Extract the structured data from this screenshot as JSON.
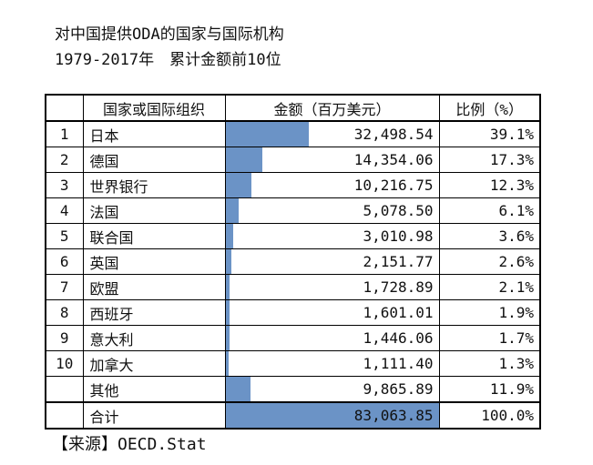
{
  "page": {
    "title_line1": "对中国提供ODA的国家与国际机构",
    "title_line2": "1979-2017年　累计金额前10位",
    "source": "【来源】OECD.Stat"
  },
  "colors": {
    "bar": "#6B93C6"
  },
  "table": {
    "headers": {
      "rank": "",
      "name": "国家或国际组织",
      "amount": "金额（百万美元）",
      "ratio": "比例（%）"
    },
    "total_value": 83063.85,
    "rows": [
      {
        "rank": "1",
        "name": "日本",
        "amount": "32,498.54",
        "ratio": "39.1%",
        "value": 32498.54
      },
      {
        "rank": "2",
        "name": "德国",
        "amount": "14,354.06",
        "ratio": "17.3%",
        "value": 14354.06
      },
      {
        "rank": "3",
        "name": "世界银行",
        "amount": "10,216.75",
        "ratio": "12.3%",
        "value": 10216.75
      },
      {
        "rank": "4",
        "name": "法国",
        "amount": "5,078.50",
        "ratio": "6.1%",
        "value": 5078.5
      },
      {
        "rank": "5",
        "name": "联合国",
        "amount": "3,010.98",
        "ratio": "3.6%",
        "value": 3010.98
      },
      {
        "rank": "6",
        "name": "英国",
        "amount": "2,151.77",
        "ratio": "2.6%",
        "value": 2151.77
      },
      {
        "rank": "7",
        "name": "欧盟",
        "amount": "1,728.89",
        "ratio": "2.1%",
        "value": 1728.89
      },
      {
        "rank": "8",
        "name": "西班牙",
        "amount": "1,601.01",
        "ratio": "1.9%",
        "value": 1601.01
      },
      {
        "rank": "9",
        "name": "意大利",
        "amount": "1,446.06",
        "ratio": "1.7%",
        "value": 1446.06
      },
      {
        "rank": "10",
        "name": "加拿大",
        "amount": "1,111.40",
        "ratio": "1.3%",
        "value": 1111.4
      },
      {
        "rank": "",
        "name": "其他",
        "amount": "9,865.89",
        "ratio": "11.9%",
        "value": 9865.89
      },
      {
        "rank": "",
        "name": "合计",
        "amount": "83,063.85",
        "ratio": "100.0%",
        "value": 83063.85,
        "is_total": true
      }
    ]
  },
  "chart_data": {
    "type": "bar",
    "title": "对中国提供ODA的国家与国际机构 1979-2017年 累计金额前10位",
    "categories": [
      "日本",
      "德国",
      "世界银行",
      "法国",
      "联合国",
      "英国",
      "欧盟",
      "西班牙",
      "意大利",
      "加拿大",
      "其他",
      "合计"
    ],
    "series": [
      {
        "name": "金额（百万美元）",
        "values": [
          32498.54,
          14354.06,
          10216.75,
          5078.5,
          3010.98,
          2151.77,
          1728.89,
          1601.01,
          1446.06,
          1111.4,
          9865.89,
          83063.85
        ]
      },
      {
        "name": "比例（%）",
        "values": [
          39.1,
          17.3,
          12.3,
          6.1,
          3.6,
          2.6,
          2.1,
          1.9,
          1.7,
          1.3,
          11.9,
          100.0
        ]
      }
    ],
    "xlabel": "国家或国际组织",
    "ylabel": "金额（百万美元）",
    "xlim": [
      0,
      83063.85
    ],
    "legend_position": "none",
    "grid": false,
    "orientation": "horizontal",
    "source": "【来源】OECD.Stat"
  }
}
